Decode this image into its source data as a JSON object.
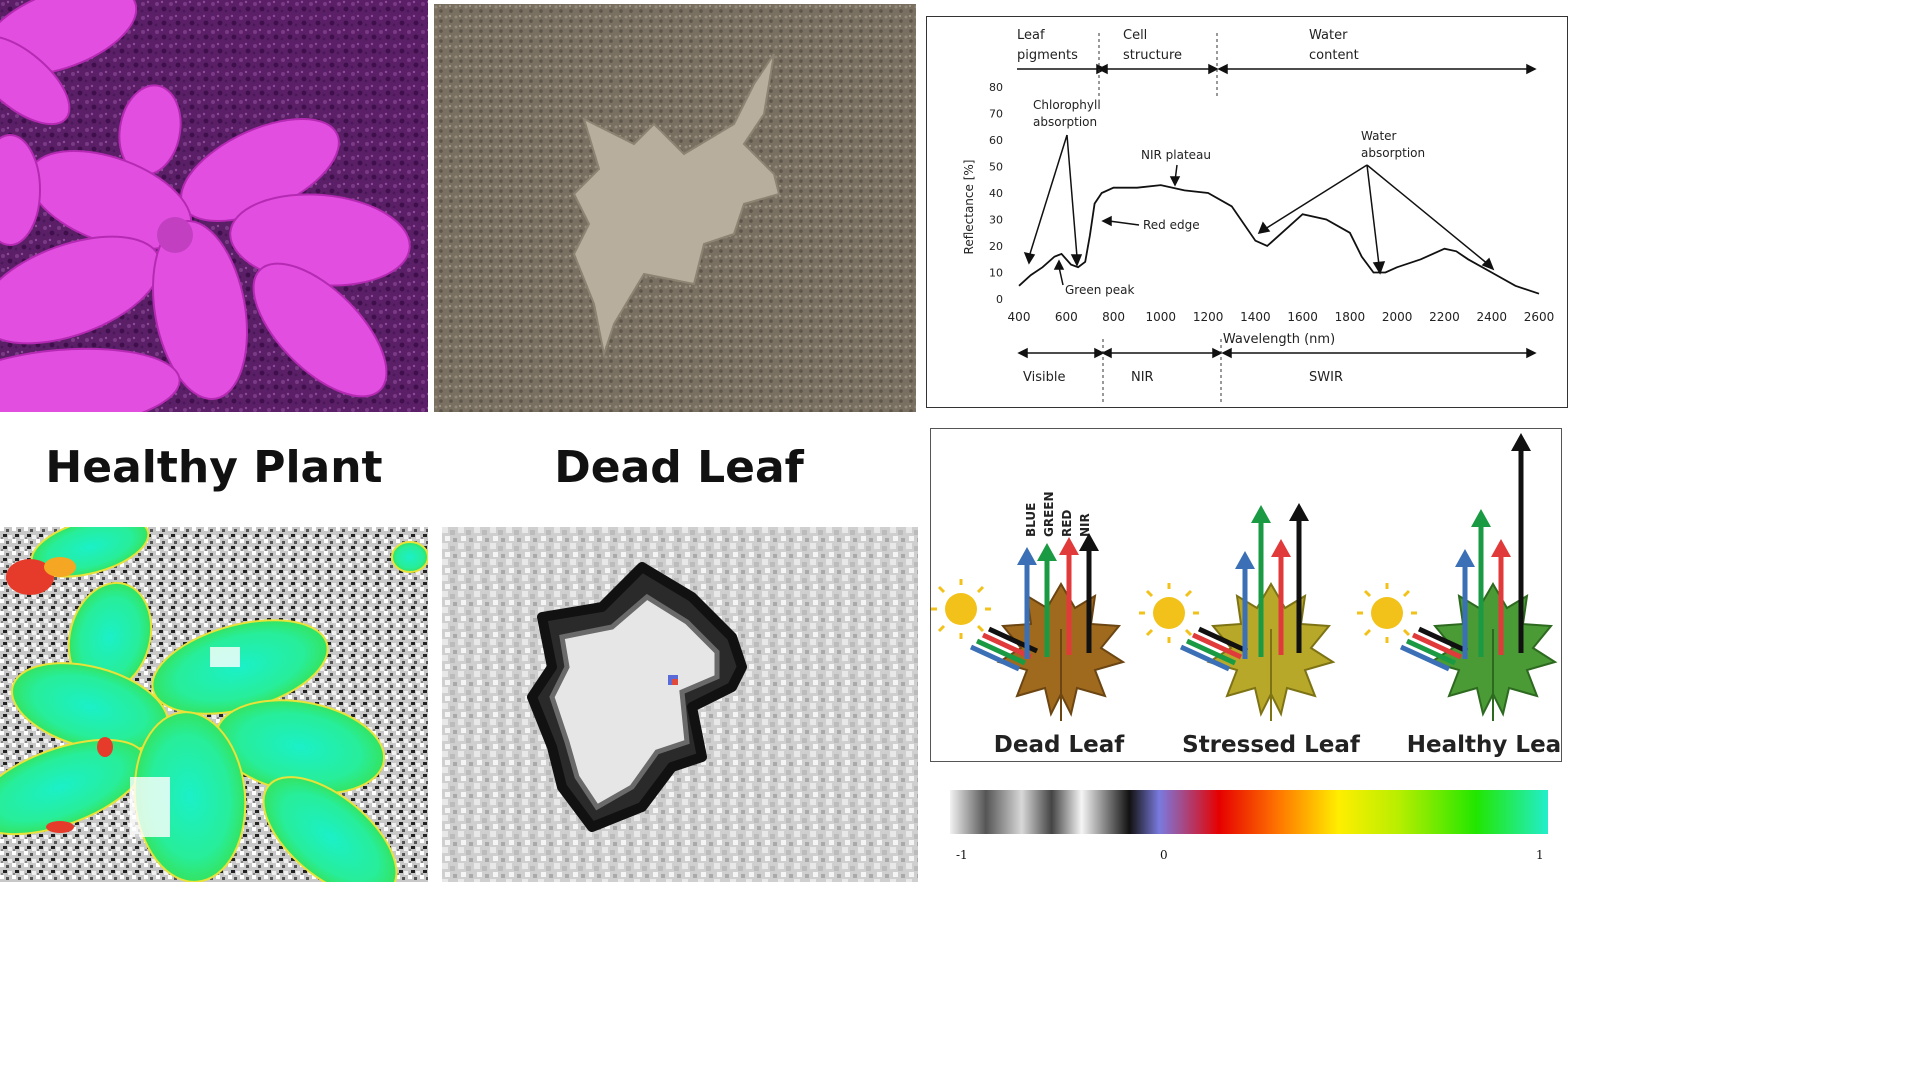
{
  "labels": {
    "healthy": "Healthy Plant",
    "dead": "Dead Leaf"
  },
  "spectrum": {
    "regions_top": [
      "Leaf\npigments",
      "Cell\nstructure",
      "Water\ncontent"
    ],
    "region_top_1a": "Leaf",
    "region_top_1b": "pigments",
    "region_top_2a": "Cell",
    "region_top_2b": "structure",
    "region_top_3a": "Water",
    "region_top_3b": "content",
    "ylabel": "Reflectance [%]",
    "xlabel": "Wavelength (nm)",
    "y_ticks": [
      "0",
      "10",
      "20",
      "30",
      "40",
      "50",
      "60",
      "70",
      "80"
    ],
    "x_ticks": [
      "400",
      "600",
      "800",
      "1000",
      "1200",
      "1400",
      "1600",
      "1800",
      "2000",
      "2200",
      "2400",
      "2600"
    ],
    "ann_chlorophyll_a": "Chlorophyll",
    "ann_chlorophyll_b": "absorption",
    "ann_nir": "NIR plateau",
    "ann_water_a": "Water",
    "ann_water_b": "absorption",
    "ann_rededge": "Red edge",
    "ann_green": "Green peak",
    "band_visible": "Visible",
    "band_nir": "NIR",
    "band_swir": "SWIR"
  },
  "chart_data": {
    "type": "line",
    "xlabel": "Wavelength (nm)",
    "ylabel": "Reflectance [%]",
    "xlim": [
      400,
      2600
    ],
    "ylim": [
      0,
      80
    ],
    "x": [
      400,
      450,
      500,
      550,
      580,
      620,
      650,
      680,
      700,
      720,
      750,
      800,
      900,
      1000,
      1100,
      1200,
      1300,
      1400,
      1450,
      1500,
      1600,
      1700,
      1800,
      1850,
      1900,
      1950,
      2000,
      2100,
      2200,
      2250,
      2300,
      2400,
      2500,
      2600
    ],
    "series": [
      {
        "values": [
          5,
          9,
          12,
          16,
          17,
          13,
          12,
          14,
          24,
          36,
          40,
          42,
          42,
          43,
          41,
          40,
          35,
          22,
          20,
          24,
          32,
          30,
          25,
          16,
          10,
          10,
          12,
          15,
          19,
          18,
          15,
          10,
          5,
          2
        ]
      }
    ]
  },
  "leaves": {
    "band_names": [
      "BLUE",
      "GREEN",
      "RED",
      "NIR"
    ],
    "captions": [
      "Dead Leaf",
      "Stressed Leaf",
      "Healthy Leaf"
    ]
  },
  "ramp": {
    "ticks": [
      "-1",
      "0",
      "1"
    ]
  },
  "colors": {
    "blue_arrow": "#3b6fb6",
    "green_arrow": "#1a9a43",
    "red_arrow": "#e03a3a",
    "nir_arrow": "#111111",
    "sun": "#f2c21b"
  }
}
